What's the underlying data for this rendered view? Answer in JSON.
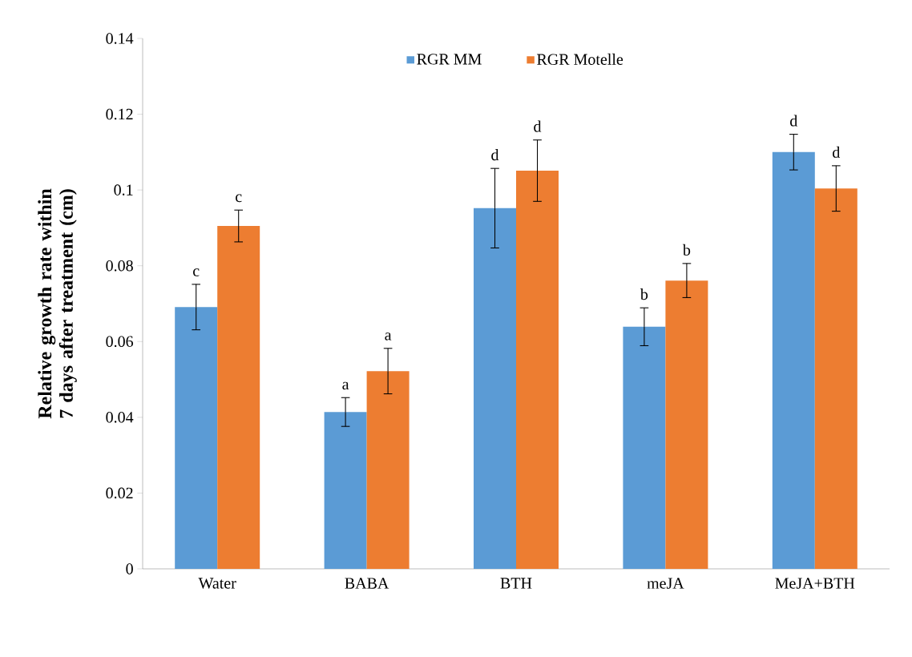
{
  "chart_data": {
    "type": "bar",
    "ylabel": "Relative growth rate within 7 days after treatment  (cm)",
    "categories": [
      "Water",
      "BABA",
      "BTH",
      "meJA",
      "MeJA+BTH"
    ],
    "series": [
      {
        "name": "RGR MM",
        "color": "#5b9bd5",
        "values": [
          0.0691,
          0.0414,
          0.0952,
          0.0639,
          0.11
        ],
        "errors": [
          0.006,
          0.0038,
          0.0105,
          0.005,
          0.0047
        ]
      },
      {
        "name": "RGR Motelle",
        "color": "#ed7d31",
        "values": [
          0.0905,
          0.0522,
          0.1051,
          0.0761,
          0.1004
        ],
        "errors": [
          0.0042,
          0.006,
          0.0081,
          0.0045,
          0.006
        ]
      }
    ],
    "ylim": [
      0,
      0.14
    ],
    "yticks": [
      0,
      0.02,
      0.04,
      0.06,
      0.08,
      0.1,
      0.12,
      0.14
    ],
    "legend": "top",
    "grid": false,
    "annotations": [
      {
        "text": "c",
        "x": "Water",
        "y": 0.0691
      },
      {
        "text": "c",
        "x": "Water",
        "y": 0.0905
      },
      {
        "text": "a",
        "x": "BABA",
        "y": 0.0414
      },
      {
        "text": "a",
        "x": "BABA",
        "y": 0.0522
      },
      {
        "text": "d",
        "x": "BTH",
        "y": 0.1057
      },
      {
        "text": "d",
        "x": "BTH",
        "y": 0.1051
      },
      {
        "text": "b",
        "x": "meJA",
        "y": 0.0639
      },
      {
        "text": "b",
        "x": "meJA",
        "y": 0.0761
      },
      {
        "text": "d",
        "x": "MeJA+BTH",
        "y": 0.11
      },
      {
        "text": "d",
        "x": "MeJA+BTH",
        "y": 0.1004
      }
    ]
  }
}
